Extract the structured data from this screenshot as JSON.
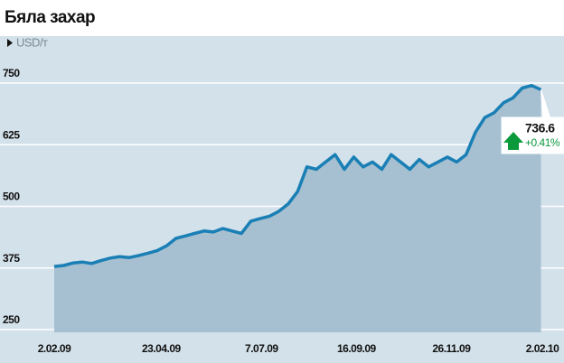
{
  "chart_data": {
    "type": "area",
    "title": "Бяла захар",
    "y_label": "USD/т",
    "x": [
      "2.02.09",
      "9.02.09",
      "16.02.09",
      "23.02.09",
      "2.03.09",
      "9.03.09",
      "16.03.09",
      "23.03.09",
      "30.03.09",
      "6.04.09",
      "13.04.09",
      "20.04.09",
      "27.04.09",
      "4.05.09",
      "11.05.09",
      "18.05.09",
      "25.05.09",
      "1.06.09",
      "8.06.09",
      "15.06.09",
      "22.06.09",
      "29.06.09",
      "6.07.09",
      "13.07.09",
      "20.07.09",
      "27.07.09",
      "3.08.09",
      "10.08.09",
      "17.08.09",
      "24.08.09",
      "31.08.09",
      "7.09.09",
      "14.09.09",
      "21.09.09",
      "28.09.09",
      "5.10.09",
      "12.10.09",
      "19.10.09",
      "26.10.09",
      "2.11.09",
      "9.11.09",
      "16.11.09",
      "23.11.09",
      "30.11.09",
      "7.12.09",
      "14.12.09",
      "21.12.09",
      "28.12.09",
      "4.01.10",
      "11.01.10",
      "18.01.10",
      "25.01.10",
      "1.02.10"
    ],
    "values": [
      378,
      380,
      385,
      387,
      384,
      390,
      395,
      398,
      396,
      400,
      405,
      410,
      420,
      435,
      440,
      445,
      450,
      448,
      455,
      450,
      445,
      470,
      475,
      480,
      490,
      505,
      530,
      580,
      575,
      590,
      605,
      575,
      600,
      580,
      590,
      575,
      605,
      590,
      575,
      595,
      580,
      590,
      600,
      590,
      605,
      650,
      680,
      690,
      710,
      720,
      740,
      745,
      736.6
    ],
    "color": "#1a7fb5",
    "ylim": [
      250,
      750
    ],
    "yticks": [
      250,
      375,
      500,
      625,
      750
    ],
    "xticks": [
      "2.02.09",
      "23.04.09",
      "7.07.09",
      "16.09.09",
      "26.11.09",
      "2.02.10"
    ],
    "grid": true,
    "annotations": [
      {
        "text": "736.6"
      },
      {
        "text": "+0.41%"
      }
    ]
  }
}
